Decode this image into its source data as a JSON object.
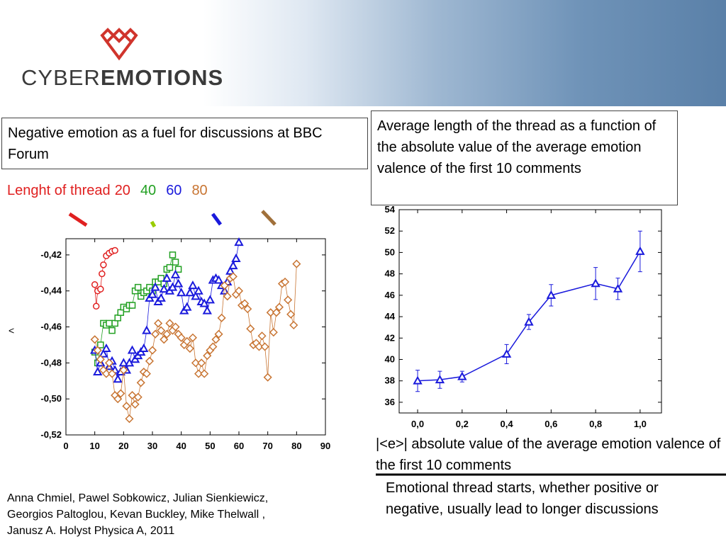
{
  "header": {
    "logo_light": "CYBER",
    "logo_bold": "EMOTIONS"
  },
  "title_box": "Negative emotion as a fuel for discussions at BBC Forum",
  "description_box": "Average length of the thread as a function of the absolute value of the average emotion valence of the first 10 comments",
  "citation": [
    "Anna Chmiel, Pawel Sobkowicz, Julian Sienkiewicz,",
    "Georgios Paltoglou, Kevan Buckley, Mike Thelwall ,",
    "Janusz A. Holyst Physica A,  2011"
  ],
  "conclusion": "Emotional thread starts, whether positive or negative, usually lead to longer discussions",
  "chart_data": [
    {
      "type": "line",
      "legend_title": "Lenght of thread",
      "ylabel": "<",
      "xlim": [
        0,
        90
      ],
      "xticks": [
        0,
        10,
        20,
        30,
        40,
        50,
        60,
        70,
        80,
        90
      ],
      "ylim": [
        -0.52,
        -0.411
      ],
      "yticks": [
        {
          "value": -0.52,
          "label": "-0,52"
        },
        {
          "value": -0.5,
          "label": "-0,50"
        },
        {
          "value": -0.48,
          "label": "-0,48"
        },
        {
          "value": -0.46,
          "label": "-0,46"
        },
        {
          "value": -0.44,
          "label": "-0,44"
        },
        {
          "value": -0.42,
          "label": "-0,42"
        }
      ],
      "series": [
        {
          "name": "20",
          "color": "#e02020",
          "marker": "circle",
          "x": [
            10,
            10.5,
            11,
            12,
            12.5,
            13,
            14,
            15,
            16,
            17
          ],
          "values": [
            -0.4365,
            -0.4485,
            -0.44,
            -0.439,
            -0.4305,
            -0.4255,
            -0.4205,
            -0.419,
            -0.418,
            -0.4175
          ]
        },
        {
          "name": "40",
          "color": "#22a022",
          "marker": "square",
          "x": [
            10,
            11,
            12,
            13,
            14,
            15,
            16,
            17,
            18,
            19,
            20,
            21,
            22,
            23,
            24,
            25,
            26,
            27,
            28,
            29,
            30,
            31,
            32,
            33,
            34,
            35,
            36,
            37,
            38,
            39
          ],
          "values": [
            -0.474,
            -0.48,
            -0.47,
            -0.458,
            -0.459,
            -0.458,
            -0.462,
            -0.458,
            -0.455,
            -0.452,
            -0.449,
            -0.45,
            -0.448,
            -0.448,
            -0.44,
            -0.438,
            -0.443,
            -0.441,
            -0.44,
            -0.438,
            -0.44,
            -0.435,
            -0.435,
            -0.433,
            -0.436,
            -0.428,
            -0.427,
            -0.42,
            -0.424,
            -0.428
          ]
        },
        {
          "name": "60",
          "color": "#1a1adc",
          "marker": "triangle",
          "x": [
            10,
            11,
            12,
            13,
            14,
            15,
            16,
            17,
            18,
            19,
            20,
            21,
            22,
            23,
            24,
            25,
            26,
            27,
            28,
            29,
            30,
            31,
            32,
            33,
            34,
            35,
            36,
            37,
            38,
            39,
            40,
            41,
            42,
            43,
            44,
            45,
            46,
            47,
            48,
            49,
            50,
            51,
            52,
            53,
            54,
            55,
            56,
            57,
            58,
            59,
            60
          ],
          "values": [
            -0.473,
            -0.485,
            -0.48,
            -0.475,
            -0.472,
            -0.482,
            -0.479,
            -0.484,
            -0.489,
            -0.485,
            -0.48,
            -0.484,
            -0.48,
            -0.473,
            -0.478,
            -0.476,
            -0.474,
            -0.472,
            -0.462,
            -0.444,
            -0.442,
            -0.438,
            -0.446,
            -0.444,
            -0.439,
            -0.433,
            -0.44,
            -0.438,
            -0.431,
            -0.436,
            -0.441,
            -0.451,
            -0.449,
            -0.441,
            -0.437,
            -0.443,
            -0.44,
            -0.446,
            -0.447,
            -0.451,
            -0.445,
            -0.434,
            -0.433,
            -0.434,
            -0.437,
            -0.44,
            -0.435,
            -0.429,
            -0.426,
            -0.422,
            -0.413
          ]
        },
        {
          "name": "80",
          "color": "#c87533",
          "marker": "diamond",
          "x": [
            10,
            11,
            12,
            13,
            14,
            15,
            16,
            17,
            18,
            19,
            20,
            21,
            22,
            23,
            24,
            25,
            26,
            27,
            28,
            29,
            30,
            31,
            32,
            33,
            34,
            35,
            36,
            37,
            38,
            39,
            40,
            41,
            42,
            43,
            44,
            45,
            46,
            47,
            48,
            49,
            50,
            51,
            52,
            53,
            54,
            55,
            56,
            57,
            58,
            59,
            60,
            61,
            62,
            63,
            64,
            65,
            66,
            67,
            68,
            69,
            70,
            71,
            72,
            73,
            74,
            75,
            76,
            77,
            78,
            79,
            80
          ],
          "values": [
            -0.467,
            -0.473,
            -0.478,
            -0.484,
            -0.486,
            -0.48,
            -0.486,
            -0.498,
            -0.5,
            -0.497,
            -0.484,
            -0.504,
            -0.511,
            -0.498,
            -0.503,
            -0.499,
            -0.491,
            -0.485,
            -0.486,
            -0.479,
            -0.473,
            -0.464,
            -0.458,
            -0.462,
            -0.467,
            -0.464,
            -0.458,
            -0.462,
            -0.46,
            -0.464,
            -0.466,
            -0.47,
            -0.468,
            -0.472,
            -0.466,
            -0.48,
            -0.486,
            -0.48,
            -0.486,
            -0.476,
            -0.473,
            -0.471,
            -0.467,
            -0.464,
            -0.455,
            -0.437,
            -0.443,
            -0.433,
            -0.432,
            -0.442,
            -0.44,
            -0.448,
            -0.447,
            -0.45,
            -0.461,
            -0.47,
            -0.469,
            -0.471,
            -0.465,
            -0.471,
            -0.488,
            -0.452,
            -0.463,
            -0.452,
            -0.449,
            -0.436,
            -0.435,
            -0.445,
            -0.453,
            -0.459,
            -0.425
          ]
        }
      ]
    },
    {
      "type": "line",
      "xlabel": "|<e>| absolute value of the average emotion valence of the first 10 comments",
      "xlim": [
        -0.083,
        1.096
      ],
      "xticks": [
        {
          "value": 0,
          "label": "0,0"
        },
        {
          "value": 0.2,
          "label": "0,2"
        },
        {
          "value": 0.4,
          "label": "0,4"
        },
        {
          "value": 0.6,
          "label": "0,6"
        },
        {
          "value": 0.8,
          "label": "0,8"
        },
        {
          "value": 1,
          "label": "1,0"
        }
      ],
      "ylim": [
        35,
        54
      ],
      "yticks": [
        36,
        38,
        40,
        42,
        44,
        46,
        48,
        50,
        52,
        54
      ],
      "series": [
        {
          "color": "#1a1adc",
          "marker": "triangle",
          "x": [
            0,
            0.1,
            0.2,
            0.4,
            0.5,
            0.6,
            0.8,
            0.9,
            1
          ],
          "values": [
            38,
            38.1,
            38.4,
            40.5,
            43.5,
            46,
            47.1,
            46.6,
            50.1
          ],
          "errors": [
            1,
            0.8,
            0.5,
            0.9,
            0.7,
            1,
            1.5,
            1,
            1.9
          ]
        }
      ]
    }
  ]
}
